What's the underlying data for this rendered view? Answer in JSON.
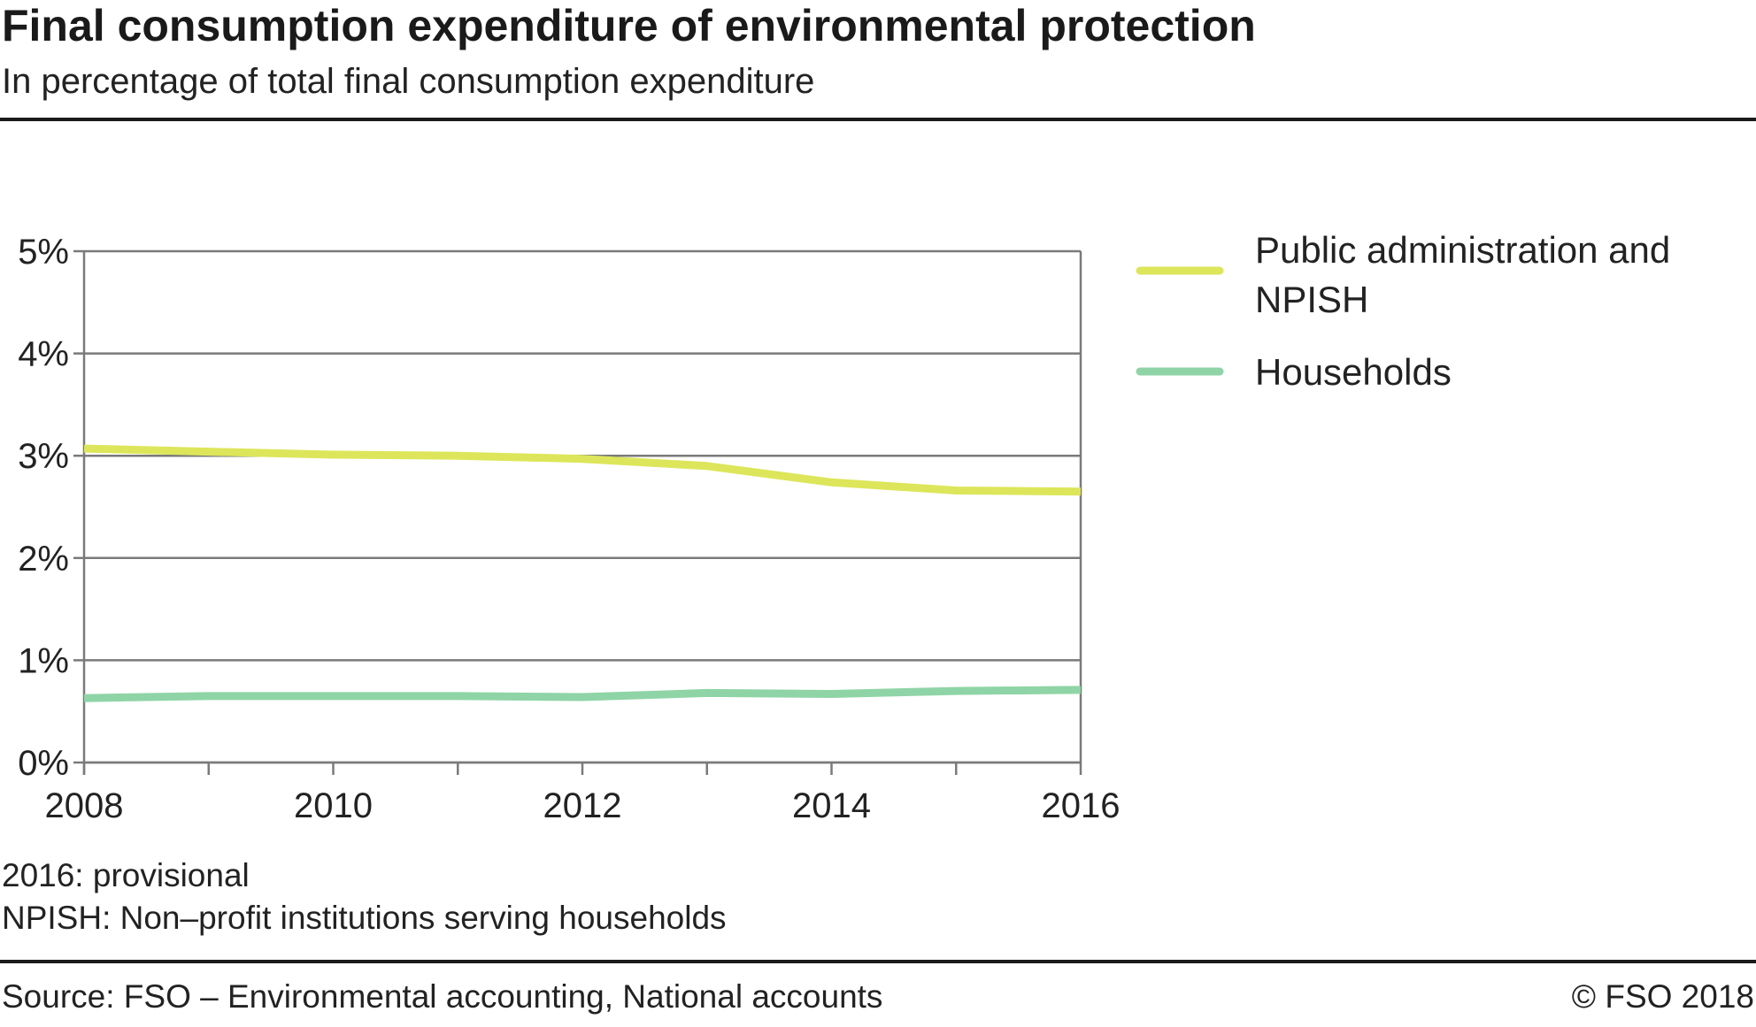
{
  "header": {
    "title": "Final consumption expenditure of environmental protection",
    "subtitle": "In percentage of total final consumption expenditure"
  },
  "chart_data": {
    "type": "line",
    "title": "Final consumption expenditure of environmental protection",
    "subtitle": "In percentage of total final consumption expenditure",
    "x": [
      2008,
      2009,
      2010,
      2011,
      2012,
      2013,
      2014,
      2015,
      2016
    ],
    "x_tick_labels": [
      "2008",
      "2010",
      "2012",
      "2014",
      "2016"
    ],
    "x_tick_values": [
      2008,
      2010,
      2012,
      2014,
      2016
    ],
    "xlim": [
      2008,
      2016
    ],
    "ylim": [
      0,
      5
    ],
    "y_ticks": [
      0,
      1,
      2,
      3,
      4,
      5
    ],
    "y_tick_labels": [
      "0%",
      "1%",
      "2%",
      "3%",
      "4%",
      "5%"
    ],
    "grid": true,
    "legend_position": "right",
    "series": [
      {
        "name": "Public administration and NPISH",
        "name_lines": [
          "Public administration and",
          "NPISH"
        ],
        "color": "#dde65a",
        "values": [
          3.07,
          3.04,
          3.01,
          3.0,
          2.97,
          2.9,
          2.74,
          2.66,
          2.65
        ]
      },
      {
        "name": "Households",
        "name_lines": [
          "Households"
        ],
        "color": "#8fd4a6",
        "values": [
          0.63,
          0.65,
          0.65,
          0.65,
          0.64,
          0.68,
          0.67,
          0.7,
          0.71
        ]
      }
    ]
  },
  "notes": {
    "line1": "2016: provisional",
    "line2": "NPISH: Non–profit institutions serving households"
  },
  "footer": {
    "source": "Source: FSO – Environmental accounting, National accounts",
    "copyright": "© FSO  2018"
  }
}
